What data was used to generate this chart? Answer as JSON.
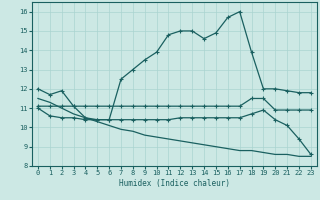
{
  "bg_color": "#cce8e4",
  "grid_color": "#aad4d0",
  "line_color": "#1a6060",
  "xlabel": "Humidex (Indice chaleur)",
  "xlim": [
    -0.5,
    23.5
  ],
  "ylim": [
    8,
    16.5
  ],
  "yticks": [
    8,
    9,
    10,
    11,
    12,
    13,
    14,
    15,
    16
  ],
  "xticks": [
    0,
    1,
    2,
    3,
    4,
    5,
    6,
    7,
    8,
    9,
    10,
    11,
    12,
    13,
    14,
    15,
    16,
    17,
    18,
    19,
    20,
    21,
    22,
    23
  ],
  "line1_x": [
    0,
    1,
    2,
    3,
    4,
    5,
    6,
    7,
    8,
    9,
    10,
    11,
    12,
    13,
    14,
    15,
    16,
    17,
    18,
    19,
    20,
    21,
    22,
    23
  ],
  "line1_y": [
    12.0,
    11.7,
    11.9,
    11.1,
    10.5,
    10.4,
    10.4,
    12.5,
    13.0,
    13.5,
    13.9,
    14.8,
    15.0,
    15.0,
    14.6,
    14.9,
    15.7,
    16.0,
    13.9,
    12.0,
    12.0,
    11.9,
    11.8,
    11.8
  ],
  "line2_x": [
    0,
    1,
    2,
    3,
    4,
    5,
    6,
    7,
    8,
    9,
    10,
    11,
    12,
    13,
    14,
    15,
    16,
    17,
    18,
    19,
    20,
    21,
    22,
    23
  ],
  "line2_y": [
    11.1,
    11.1,
    11.1,
    11.1,
    11.1,
    11.1,
    11.1,
    11.1,
    11.1,
    11.1,
    11.1,
    11.1,
    11.1,
    11.1,
    11.1,
    11.1,
    11.1,
    11.1,
    11.5,
    11.5,
    10.9,
    10.9,
    10.9,
    10.9
  ],
  "line3_x": [
    0,
    1,
    2,
    3,
    4,
    5,
    6,
    7,
    8,
    9,
    10,
    11,
    12,
    13,
    14,
    15,
    16,
    17,
    18,
    19,
    20,
    21,
    22,
    23
  ],
  "line3_y": [
    11.0,
    10.6,
    10.5,
    10.5,
    10.4,
    10.4,
    10.4,
    10.4,
    10.4,
    10.4,
    10.4,
    10.4,
    10.5,
    10.5,
    10.5,
    10.5,
    10.5,
    10.5,
    10.7,
    10.9,
    10.4,
    10.1,
    9.4,
    8.6
  ],
  "line4_x": [
    0,
    1,
    2,
    3,
    4,
    5,
    6,
    7,
    8,
    9,
    10,
    11,
    12,
    13,
    14,
    15,
    16,
    17,
    18,
    19,
    20,
    21,
    22,
    23
  ],
  "line4_y": [
    11.5,
    11.3,
    11.0,
    10.7,
    10.5,
    10.3,
    10.1,
    9.9,
    9.8,
    9.6,
    9.5,
    9.4,
    9.3,
    9.2,
    9.1,
    9.0,
    8.9,
    8.8,
    8.8,
    8.7,
    8.6,
    8.6,
    8.5,
    8.5
  ]
}
